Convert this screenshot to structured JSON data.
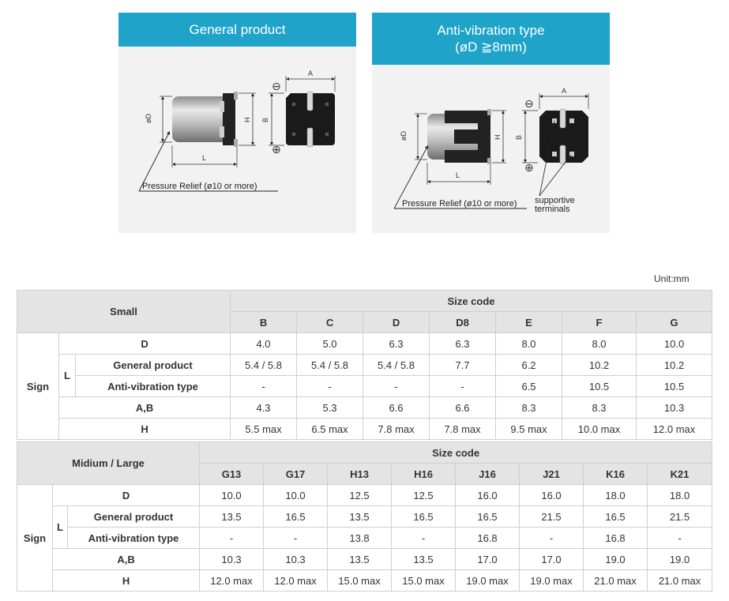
{
  "panels": {
    "general": {
      "title": "General product",
      "labels": {
        "od": "øD",
        "h": "H",
        "b": "B",
        "a": "A",
        "l": "L",
        "minus": "⊖",
        "plus": "⊕"
      },
      "pressure_relief": "Pressure Relief (ø10 or more)"
    },
    "antivib": {
      "title_line1": "Anti-vibration type",
      "title_line2": "(øD ≧8mm)",
      "labels": {
        "od": "øD",
        "h": "H",
        "b": "B",
        "a": "A",
        "l": "L",
        "minus": "⊖",
        "plus": "⊕"
      },
      "pressure_relief": "Pressure Relief (ø10 or more)",
      "supportive_line1": "supportive",
      "supportive_line2": "terminals"
    }
  },
  "unit": "Unit:mm",
  "small": {
    "title": "Small",
    "size_code": "Size code",
    "sign": "Sign",
    "codes": [
      "B",
      "C",
      "D",
      "D8",
      "E",
      "F",
      "G"
    ],
    "rows": [
      {
        "label": "D",
        "values": [
          "4.0",
          "5.0",
          "6.3",
          "6.3",
          "8.0",
          "8.0",
          "10.0"
        ]
      },
      {
        "label": "General product",
        "values": [
          "5.4 / 5.8",
          "5.4 / 5.8",
          "5.4 / 5.8",
          "7.7",
          "6.2",
          "10.2",
          "10.2"
        ]
      },
      {
        "label": "Anti-vibration type",
        "values": [
          "-",
          "-",
          "-",
          "-",
          "6.5",
          "10.5",
          "10.5"
        ]
      },
      {
        "label": "A,B",
        "values": [
          "4.3",
          "5.3",
          "6.6",
          "6.6",
          "8.3",
          "8.3",
          "10.3"
        ]
      },
      {
        "label": "H",
        "values": [
          "5.5 max",
          "6.5 max",
          "7.8 max",
          "7.8 max",
          "9.5 max",
          "10.0 max",
          "12.0 max"
        ]
      }
    ],
    "l_label": "L"
  },
  "medium": {
    "title": "Midium / Large",
    "size_code": "Size code",
    "sign": "Sign",
    "codes": [
      "G13",
      "G17",
      "H13",
      "H16",
      "J16",
      "J21",
      "K16",
      "K21"
    ],
    "rows": [
      {
        "label": "D",
        "values": [
          "10.0",
          "10.0",
          "12.5",
          "12.5",
          "16.0",
          "16.0",
          "18.0",
          "18.0"
        ]
      },
      {
        "label": "General product",
        "values": [
          "13.5",
          "16.5",
          "13.5",
          "16.5",
          "16.5",
          "21.5",
          "16.5",
          "21.5"
        ]
      },
      {
        "label": "Anti-vibration type",
        "values": [
          "-",
          "-",
          "13.8",
          "-",
          "16.8",
          "-",
          "16.8",
          "-"
        ]
      },
      {
        "label": "A,B",
        "values": [
          "10.3",
          "10.3",
          "13.5",
          "13.5",
          "17.0",
          "17.0",
          "19.0",
          "19.0"
        ]
      },
      {
        "label": "H",
        "values": [
          "12.0 max",
          "12.0 max",
          "15.0 max",
          "15.0 max",
          "19.0 max",
          "19.0 max",
          "21.0 max",
          "21.0 max"
        ]
      }
    ],
    "l_label": "L"
  }
}
